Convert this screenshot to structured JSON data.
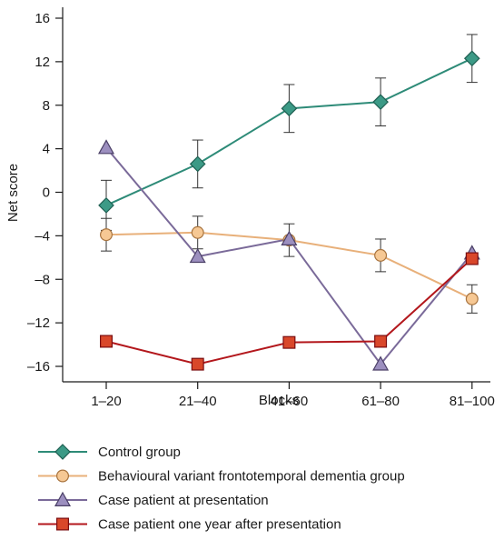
{
  "chart_data": {
    "type": "line",
    "title": "",
    "xlabel": "Blocks",
    "ylabel": "Net score",
    "categories": [
      "1–20",
      "21–40",
      "41–60",
      "61–80",
      "81–100"
    ],
    "ylim": [
      -20,
      16
    ],
    "yticks": [
      16,
      12,
      8,
      4,
      0,
      -4,
      -8,
      -12,
      -16
    ],
    "ytick_labels": [
      "16",
      "12",
      "8",
      "4",
      "0",
      "–4",
      "–8",
      "–12",
      "–16"
    ],
    "grid": false,
    "legend_position": "bottom-left",
    "series": [
      {
        "name": "Control group",
        "color": "#2e8b78",
        "marker": "diamond",
        "marker_fill": "#3c9a86",
        "values": [
          -1.2,
          2.6,
          7.7,
          8.3,
          12.3
        ],
        "error": [
          2.3,
          2.2,
          2.2,
          2.2,
          2.2
        ]
      },
      {
        "name": "Behavioural variant frontotemporal dementia group",
        "color": "#e8b07a",
        "marker": "circle",
        "marker_fill": "#f6c894",
        "values": [
          -3.9,
          -3.7,
          -4.4,
          -5.8,
          -9.8
        ],
        "error": [
          1.5,
          1.5,
          1.5,
          1.5,
          1.3
        ]
      },
      {
        "name": "Case patient at presentation",
        "color": "#7a6a99",
        "marker": "triangle",
        "marker_fill": "#9c8fbf",
        "values": [
          4.1,
          -5.9,
          -4.3,
          -15.8,
          -5.6
        ]
      },
      {
        "name": "Case patient one year after presentation",
        "color": "#b3171c",
        "marker": "square",
        "marker_fill": "#d9472a",
        "values": [
          -13.7,
          -15.8,
          -13.8,
          -13.7,
          -6.1
        ]
      }
    ]
  }
}
